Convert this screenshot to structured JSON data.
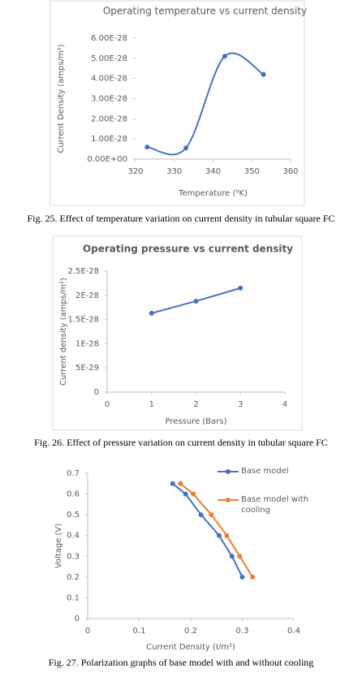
{
  "chart_data": [
    {
      "type": "line",
      "title": "Operating temperature vs current density",
      "x_label": "Temperature (⁰K)",
      "y_label": "Current Density (amps/m²)",
      "x": [
        323,
        333,
        343,
        353
      ],
      "values": [
        6e-29,
        5.5e-29,
        5.1e-28,
        4.2e-28
      ],
      "color": "#4472c4",
      "smooth": true,
      "xlim": [
        320,
        360
      ],
      "xticks": [
        320,
        330,
        340,
        350,
        360
      ],
      "ylim": [
        0,
        6e-28
      ],
      "yticks": [
        {
          "value": 0,
          "label": "0.00E+00"
        },
        {
          "value": 1e-28,
          "label": "1.00E-28"
        },
        {
          "value": 2e-28,
          "label": "2.00E-28"
        },
        {
          "value": 3e-28,
          "label": "3.00E-28"
        },
        {
          "value": 4e-28,
          "label": "4.00E-28"
        },
        {
          "value": 5e-28,
          "label": "5.00E-28"
        },
        {
          "value": 6e-28,
          "label": "6.00E-28"
        }
      ],
      "caption": "Fig. 25. Effect of temperature variation on current density in tubular square FC"
    },
    {
      "type": "line",
      "title": "Operating pressure  vs current density",
      "x_label": "Pressure (Bars)",
      "y_label": "Current density (amps/m²)",
      "x": [
        1,
        2,
        3
      ],
      "values": [
        1.63e-28,
        1.88e-28,
        2.15e-28
      ],
      "color": "#4472c4",
      "smooth": false,
      "xlim": [
        0,
        4
      ],
      "xticks": [
        0,
        1,
        2,
        3,
        4
      ],
      "ylim": [
        0,
        2.5e-28
      ],
      "yticks": [
        0,
        {
          "value": 5e-29,
          "label": "5E-29"
        },
        {
          "value": 1e-28,
          "label": "1E-28"
        },
        {
          "value": 1.5e-28,
          "label": "1.5E-28"
        },
        {
          "value": 2e-28,
          "label": "2E-28"
        },
        {
          "value": 2.5e-28,
          "label": "2.5E-28"
        }
      ],
      "caption": "Fig. 26.  Effect of pressure variation on current density in tubular square FC"
    },
    {
      "type": "line",
      "x_label": "Current Density (I/m²)",
      "y_label": "Voltage (V)",
      "series": [
        {
          "name": "Base model",
          "color": "#4472c4",
          "x": [
            0.165,
            0.19,
            0.22,
            0.255,
            0.28,
            0.3
          ],
          "values": [
            0.65,
            0.6,
            0.5,
            0.4,
            0.3,
            0.2
          ]
        },
        {
          "name": "Base model with cooling",
          "color": "#ed7d31",
          "x": [
            0.18,
            0.205,
            0.24,
            0.27,
            0.295,
            0.32
          ],
          "values": [
            0.65,
            0.6,
            0.5,
            0.4,
            0.3,
            0.2
          ]
        }
      ],
      "legend": "top-right",
      "xlim": [
        0,
        0.4
      ],
      "xticks": [
        0,
        0.1,
        0.2,
        0.3,
        0.4
      ],
      "ylim": [
        0,
        0.7
      ],
      "yticks": [
        0,
        0.1,
        0.2,
        0.3,
        0.4,
        0.5,
        0.6,
        0.7
      ],
      "caption": "Fig. 27.  Polarization graphs of base model with and without cooling"
    }
  ]
}
